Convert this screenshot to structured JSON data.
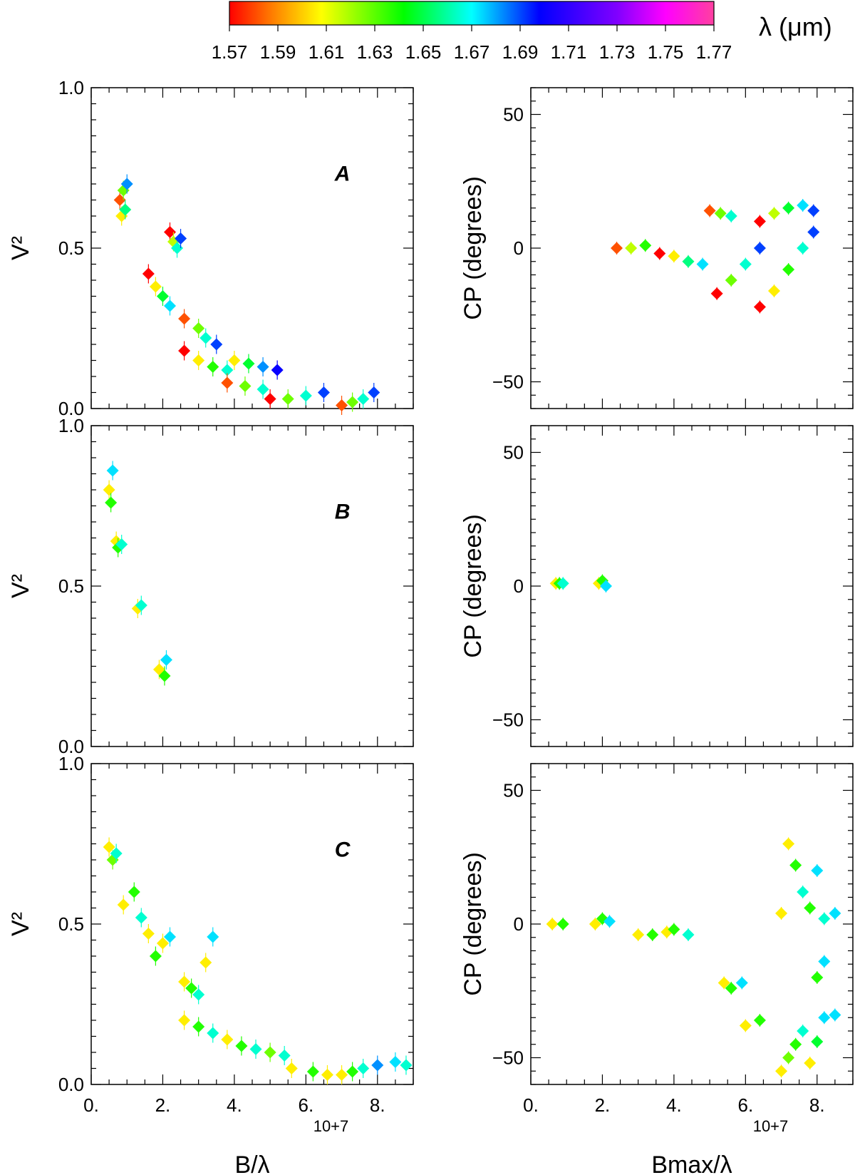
{
  "colorbar": {
    "label": "λ (μm)",
    "ticks": [
      "1.57",
      "1.59",
      "1.61",
      "1.63",
      "1.65",
      "1.67",
      "1.69",
      "1.71",
      "1.73",
      "1.75",
      "1.77"
    ],
    "range": [
      1.57,
      1.77
    ]
  },
  "chart_data": [
    {
      "type": "scatter",
      "panel": "A",
      "ylabel": "V²",
      "xlabel": "B/λ",
      "exponent": "10+7",
      "xlim": [
        0,
        9.0
      ],
      "ylim": [
        0,
        1.0
      ],
      "xticks": [
        "0.",
        "2.",
        "4.",
        "6.",
        "8."
      ],
      "yticks": [
        "0.0",
        "0.5",
        "1.0"
      ],
      "points": [
        [
          0.8,
          0.65,
          1.58
        ],
        [
          0.9,
          0.68,
          1.62
        ],
        [
          1.0,
          0.7,
          1.68
        ],
        [
          0.85,
          0.6,
          1.6
        ],
        [
          0.95,
          0.62,
          1.65
        ],
        [
          2.2,
          0.55,
          1.57
        ],
        [
          2.3,
          0.52,
          1.61
        ],
        [
          2.4,
          0.5,
          1.66
        ],
        [
          2.5,
          0.53,
          1.69
        ],
        [
          1.6,
          0.42,
          1.57
        ],
        [
          1.8,
          0.38,
          1.6
        ],
        [
          2.0,
          0.35,
          1.64
        ],
        [
          2.2,
          0.32,
          1.67
        ],
        [
          2.6,
          0.28,
          1.58
        ],
        [
          3.0,
          0.25,
          1.62
        ],
        [
          3.2,
          0.22,
          1.66
        ],
        [
          3.5,
          0.2,
          1.69
        ],
        [
          2.6,
          0.18,
          1.57
        ],
        [
          3.0,
          0.15,
          1.6
        ],
        [
          3.4,
          0.13,
          1.63
        ],
        [
          3.8,
          0.12,
          1.66
        ],
        [
          4.0,
          0.15,
          1.6
        ],
        [
          4.4,
          0.14,
          1.64
        ],
        [
          4.8,
          0.13,
          1.68
        ],
        [
          5.2,
          0.12,
          1.7
        ],
        [
          3.8,
          0.08,
          1.58
        ],
        [
          4.3,
          0.07,
          1.62
        ],
        [
          4.8,
          0.06,
          1.66
        ],
        [
          5.0,
          0.03,
          1.57
        ],
        [
          5.5,
          0.03,
          1.62
        ],
        [
          6.0,
          0.04,
          1.66
        ],
        [
          6.5,
          0.05,
          1.69
        ],
        [
          7.0,
          0.01,
          1.58
        ],
        [
          7.3,
          0.02,
          1.62
        ],
        [
          7.6,
          0.03,
          1.66
        ],
        [
          7.9,
          0.05,
          1.69
        ]
      ]
    },
    {
      "type": "scatter",
      "panel": "A",
      "ylabel": "CP (degrees)",
      "xlabel": "Bmax/λ",
      "exponent": "10+7",
      "xlim": [
        0,
        9.0
      ],
      "ylim": [
        -60,
        60
      ],
      "xticks": [
        "0.",
        "2.",
        "4.",
        "6.",
        "8."
      ],
      "yticks": [
        "−50",
        "0",
        "50"
      ],
      "points": [
        [
          2.4,
          0,
          1.58
        ],
        [
          2.8,
          0,
          1.61
        ],
        [
          3.2,
          1,
          1.63
        ],
        [
          3.6,
          -2,
          1.57
        ],
        [
          4.0,
          -3,
          1.6
        ],
        [
          4.4,
          -5,
          1.65
        ],
        [
          4.8,
          -6,
          1.67
        ],
        [
          5.0,
          14,
          1.58
        ],
        [
          5.3,
          13,
          1.62
        ],
        [
          5.6,
          12,
          1.66
        ],
        [
          6.4,
          10,
          1.57
        ],
        [
          6.8,
          13,
          1.61
        ],
        [
          7.2,
          15,
          1.64
        ],
        [
          7.6,
          16,
          1.67
        ],
        [
          7.9,
          14,
          1.69
        ],
        [
          5.2,
          -17,
          1.57
        ],
        [
          5.6,
          -12,
          1.62
        ],
        [
          6.0,
          -6,
          1.66
        ],
        [
          6.4,
          0,
          1.69
        ],
        [
          6.4,
          -22,
          1.57
        ],
        [
          6.8,
          -16,
          1.6
        ],
        [
          7.2,
          -8,
          1.63
        ],
        [
          7.6,
          0,
          1.66
        ],
        [
          7.9,
          6,
          1.69
        ]
      ]
    },
    {
      "type": "scatter",
      "panel": "B",
      "ylabel": "V²",
      "xlabel": "B/λ",
      "exponent": "10+7",
      "xlim": [
        0,
        9.0
      ],
      "ylim": [
        0,
        1.0
      ],
      "xticks": [
        "0.",
        "2.",
        "4.",
        "6.",
        "8."
      ],
      "yticks": [
        "0.0",
        "0.5",
        "1.0"
      ],
      "points": [
        [
          0.5,
          0.8,
          1.6
        ],
        [
          0.55,
          0.76,
          1.63
        ],
        [
          0.6,
          0.86,
          1.67
        ],
        [
          0.7,
          0.64,
          1.6
        ],
        [
          0.75,
          0.62,
          1.63
        ],
        [
          0.85,
          0.63,
          1.66
        ],
        [
          1.3,
          0.43,
          1.6
        ],
        [
          1.4,
          0.44,
          1.66
        ],
        [
          1.9,
          0.24,
          1.6
        ],
        [
          2.05,
          0.22,
          1.63
        ],
        [
          2.1,
          0.27,
          1.67
        ]
      ]
    },
    {
      "type": "scatter",
      "panel": "B",
      "ylabel": "CP (degrees)",
      "xlabel": "Bmax/λ",
      "exponent": "10+7",
      "xlim": [
        0,
        9.0
      ],
      "ylim": [
        -60,
        60
      ],
      "xticks": [
        "0.",
        "2.",
        "4.",
        "6.",
        "8."
      ],
      "yticks": [
        "−50",
        "0",
        "50"
      ],
      "points": [
        [
          0.7,
          1,
          1.6
        ],
        [
          0.8,
          1,
          1.63
        ],
        [
          0.9,
          1,
          1.66
        ],
        [
          1.9,
          1,
          1.6
        ],
        [
          2.0,
          2,
          1.63
        ],
        [
          2.1,
          0,
          1.67
        ]
      ]
    },
    {
      "type": "scatter",
      "panel": "C",
      "ylabel": "V²",
      "xlabel": "B/λ",
      "exponent": "10+7",
      "xlim": [
        0,
        9.0
      ],
      "ylim": [
        0,
        1.0
      ],
      "xticks": [
        "0.",
        "2.",
        "4.",
        "6.",
        "8."
      ],
      "yticks": [
        "0.0",
        "0.5",
        "1.0"
      ],
      "points": [
        [
          0.5,
          0.74,
          1.6
        ],
        [
          0.6,
          0.7,
          1.62
        ],
        [
          0.7,
          0.72,
          1.66
        ],
        [
          0.9,
          0.56,
          1.6
        ],
        [
          1.2,
          0.6,
          1.63
        ],
        [
          1.4,
          0.52,
          1.66
        ],
        [
          1.6,
          0.47,
          1.6
        ],
        [
          1.8,
          0.4,
          1.63
        ],
        [
          2.0,
          0.44,
          1.6
        ],
        [
          2.2,
          0.46,
          1.67
        ],
        [
          2.6,
          0.32,
          1.6
        ],
        [
          2.8,
          0.3,
          1.63
        ],
        [
          3.0,
          0.28,
          1.66
        ],
        [
          3.2,
          0.38,
          1.6
        ],
        [
          3.4,
          0.46,
          1.67
        ],
        [
          2.6,
          0.2,
          1.6
        ],
        [
          3.0,
          0.18,
          1.63
        ],
        [
          3.4,
          0.16,
          1.66
        ],
        [
          3.8,
          0.14,
          1.6
        ],
        [
          4.2,
          0.12,
          1.63
        ],
        [
          4.6,
          0.11,
          1.66
        ],
        [
          5.0,
          0.1,
          1.62
        ],
        [
          5.4,
          0.09,
          1.66
        ],
        [
          5.6,
          0.05,
          1.6
        ],
        [
          6.2,
          0.04,
          1.63
        ],
        [
          6.6,
          0.03,
          1.6
        ],
        [
          7.0,
          0.03,
          1.6
        ],
        [
          7.3,
          0.04,
          1.63
        ],
        [
          7.6,
          0.05,
          1.66
        ],
        [
          8.0,
          0.06,
          1.68
        ],
        [
          8.5,
          0.07,
          1.67
        ],
        [
          8.8,
          0.06,
          1.66
        ]
      ]
    },
    {
      "type": "scatter",
      "panel": "C",
      "ylabel": "CP (degrees)",
      "xlabel": "Bmax/λ",
      "exponent": "10+7",
      "xlim": [
        0,
        9.0
      ],
      "ylim": [
        -60,
        60
      ],
      "xticks": [
        "0.",
        "2.",
        "4.",
        "6.",
        "8."
      ],
      "yticks": [
        "−50",
        "0",
        "50"
      ],
      "points": [
        [
          0.6,
          0,
          1.6
        ],
        [
          0.9,
          0,
          1.63
        ],
        [
          1.8,
          0,
          1.6
        ],
        [
          2.0,
          2,
          1.63
        ],
        [
          2.2,
          1,
          1.67
        ],
        [
          3.0,
          -4,
          1.6
        ],
        [
          3.4,
          -4,
          1.63
        ],
        [
          3.8,
          -3,
          1.6
        ],
        [
          4.0,
          -2,
          1.63
        ],
        [
          4.4,
          -4,
          1.66
        ],
        [
          5.4,
          -22,
          1.6
        ],
        [
          5.6,
          -24,
          1.63
        ],
        [
          5.9,
          -22,
          1.67
        ],
        [
          6.0,
          -38,
          1.6
        ],
        [
          6.4,
          -36,
          1.63
        ],
        [
          7.0,
          -55,
          1.6
        ],
        [
          7.2,
          -50,
          1.62
        ],
        [
          7.4,
          -45,
          1.63
        ],
        [
          7.6,
          -40,
          1.66
        ],
        [
          7.8,
          -52,
          1.6
        ],
        [
          8.0,
          -44,
          1.64
        ],
        [
          8.2,
          -35,
          1.67
        ],
        [
          8.5,
          -34,
          1.67
        ],
        [
          7.0,
          4,
          1.6
        ],
        [
          7.2,
          30,
          1.6
        ],
        [
          7.4,
          22,
          1.63
        ],
        [
          7.6,
          12,
          1.66
        ],
        [
          7.8,
          6,
          1.63
        ],
        [
          8.0,
          20,
          1.67
        ],
        [
          8.2,
          2,
          1.66
        ],
        [
          8.5,
          4,
          1.67
        ],
        [
          8.0,
          -20,
          1.63
        ],
        [
          8.2,
          -14,
          1.67
        ]
      ]
    }
  ]
}
